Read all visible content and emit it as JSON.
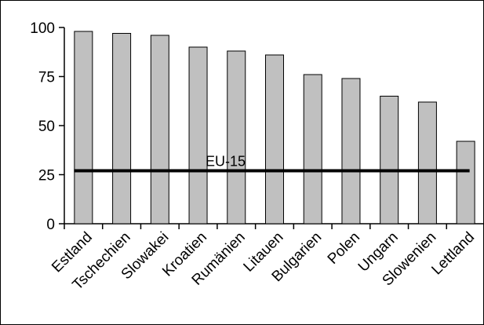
{
  "chart_data": {
    "type": "bar",
    "categories": [
      "Estland",
      "Tschechien",
      "Slowakei",
      "Kroatien",
      "Rumänien",
      "Litauen",
      "Bulgarien",
      "Polen",
      "Ungarn",
      "Slowenien",
      "Lettland"
    ],
    "values": [
      98,
      97,
      96,
      90,
      88,
      86,
      76,
      74,
      65,
      62,
      42
    ],
    "ylim": [
      0,
      100
    ],
    "yticks": [
      0,
      25,
      50,
      75,
      100
    ],
    "title": "",
    "xlabel": "",
    "ylabel": "",
    "reference_line": {
      "label": "EU-15",
      "value": 27
    },
    "grid": false,
    "legend": "none",
    "colors": {
      "bar_fill": "#c0c0c0",
      "bar_stroke": "#000000",
      "reference_line": "#000000"
    }
  }
}
